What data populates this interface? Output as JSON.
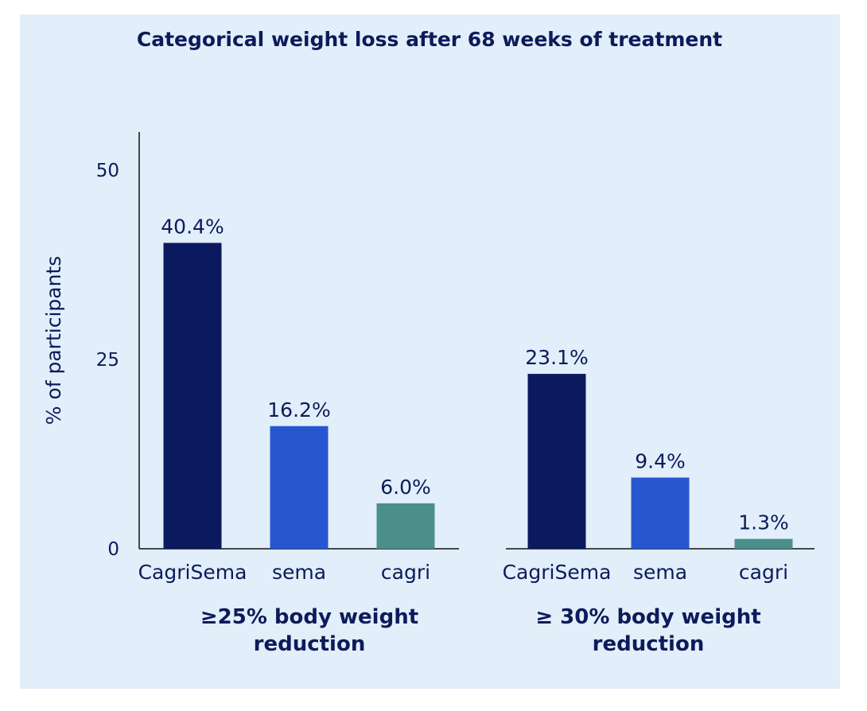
{
  "chart_data": {
    "type": "bar",
    "title": "Categorical weight loss after 68 weeks of treatment",
    "ylabel": "% of participants",
    "ylim": [
      0,
      55
    ],
    "yticks": [
      0,
      25,
      50
    ],
    "grid": false,
    "groups": [
      {
        "name_lines": [
          "≥25% body weight",
          "reduction"
        ],
        "categories": [
          "CagriSema",
          "sema",
          "cagri"
        ],
        "values": [
          40.4,
          16.2,
          6.0
        ],
        "labels": [
          "40.4%",
          "16.2%",
          "6.0%"
        ]
      },
      {
        "name_lines": [
          "≥ 30% body weight",
          "reduction"
        ],
        "categories": [
          "CagriSema",
          "sema",
          "cagri"
        ],
        "values": [
          23.1,
          9.4,
          1.3
        ],
        "labels": [
          "23.1%",
          "9.4%",
          "1.3%"
        ]
      }
    ],
    "colors": {
      "CagriSema": "#0b1a5e",
      "sema": "#2757d0",
      "cagri": "#4a8f8a",
      "text": "#0c1b5a",
      "background": "#e2eef9"
    }
  }
}
